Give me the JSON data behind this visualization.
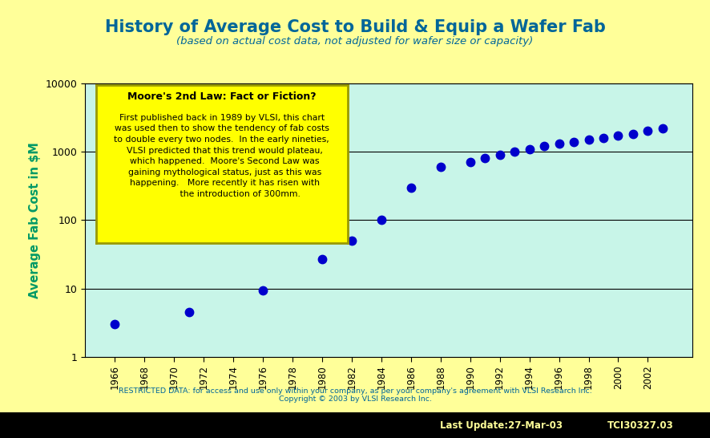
{
  "title": "History of Average Cost to Build & Equip a Wafer Fab",
  "subtitle": "(based on actual cost data, not adjusted for wafer size or capacity)",
  "ylabel": "Average Fab Cost in $M",
  "xlabel_years": [
    1966,
    1968,
    1970,
    1972,
    1974,
    1976,
    1978,
    1980,
    1982,
    1984,
    1986,
    1988,
    1990,
    1992,
    1994,
    1996,
    1998,
    2000,
    2002
  ],
  "data_x": [
    1966,
    1971,
    1976,
    1980,
    1982,
    1984,
    1986,
    1988,
    1990,
    1991,
    1992,
    1993,
    1994,
    1995,
    1996,
    1997,
    1998,
    1999,
    2000,
    2001,
    2002,
    2003
  ],
  "data_y": [
    3.0,
    4.5,
    9.5,
    27,
    50,
    100,
    300,
    600,
    700,
    800,
    900,
    1000,
    1100,
    1200,
    1300,
    1400,
    1500,
    1600,
    1700,
    1800,
    2000,
    2200
  ],
  "dot_color": "#0000CC",
  "plot_bg": "#C8F5E8",
  "fig_bg": "#FFFF99",
  "title_color": "#006699",
  "subtitle_color": "#006699",
  "ylabel_color": "#009966",
  "annotation_box_bg": "#FFFF00",
  "annotation_box_border": "#999900",
  "annotation_title": "Moore's 2nd Law: Fact or Fiction?",
  "annotation_body": "First published back in 1989 by VLSI, this chart\nwas used then to show the tendency of fab costs\nto double every two nodes.  In the early nineties,\n  VLSI predicted that this trend would plateau,\n  which happened.  Moore's Second Law was\n  gaining mythological status, just as this was\n  happening.   More recently it has risen with\n             the introduction of 300mm.",
  "footer_text1": "RESTRICTED DATA: for access and use only within your company, as per your company's agreement with VLSI Research Inc.",
  "footer_text2": "Copyright © 2003 by VLSI Research Inc.",
  "bottom_bar_left": "Last Update:27-Mar-03",
  "bottom_bar_right": "TCI30327.03",
  "ylim_min": 1,
  "ylim_max": 10000,
  "xlim_min": 1964,
  "xlim_max": 2005
}
